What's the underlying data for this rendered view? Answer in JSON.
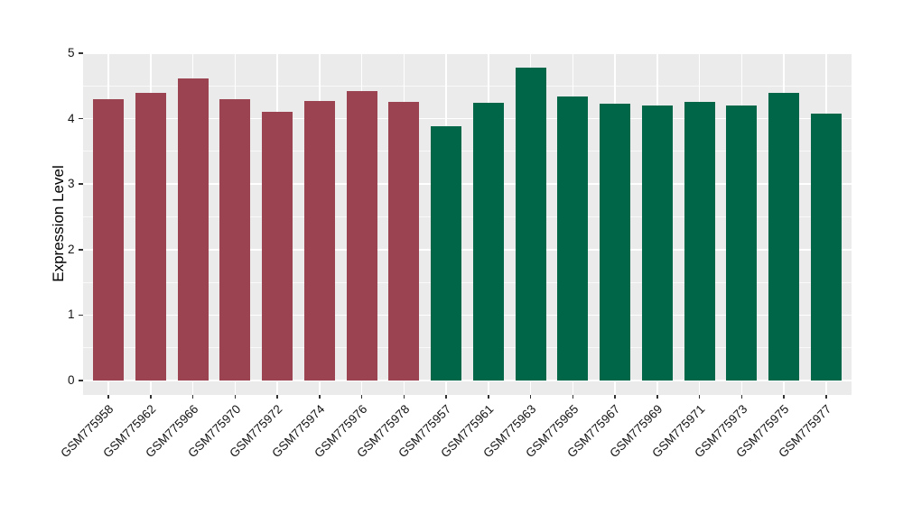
{
  "style": {
    "figure_background": "#FFFFFF",
    "panel_background": "#EBEBEB",
    "gridline_color": "#FFFFFF",
    "tick_mark_color": "#333333",
    "axis_text_color": "#141414",
    "group_colors": {
      "groupA": "#9B4350",
      "groupB": "#006648"
    }
  },
  "chart_data": {
    "type": "bar",
    "title": "",
    "xlabel": "",
    "ylabel": "Expression Level",
    "ylim": [
      0,
      5
    ],
    "yticks": [
      0,
      1,
      2,
      3,
      4,
      5
    ],
    "grid": "horizontal major+minor and vertical major white gridlines on grey panel",
    "legend_position": "none",
    "categories": [
      "GSM775958",
      "GSM775962",
      "GSM775966",
      "GSM775970",
      "GSM775972",
      "GSM775974",
      "GSM775976",
      "GSM775978",
      "GSM775957",
      "GSM775961",
      "GSM775963",
      "GSM775965",
      "GSM775967",
      "GSM775969",
      "GSM775971",
      "GSM775973",
      "GSM775975",
      "GSM775977"
    ],
    "values": [
      4.3,
      4.39,
      4.61,
      4.3,
      4.11,
      4.27,
      4.42,
      4.25,
      3.88,
      4.24,
      4.78,
      4.34,
      4.23,
      4.2,
      4.26,
      4.2,
      4.39,
      4.08
    ],
    "bar_groups": [
      "groupA",
      "groupA",
      "groupA",
      "groupA",
      "groupA",
      "groupA",
      "groupA",
      "groupA",
      "groupB",
      "groupB",
      "groupB",
      "groupB",
      "groupB",
      "groupB",
      "groupB",
      "groupB",
      "groupB",
      "groupB"
    ]
  }
}
